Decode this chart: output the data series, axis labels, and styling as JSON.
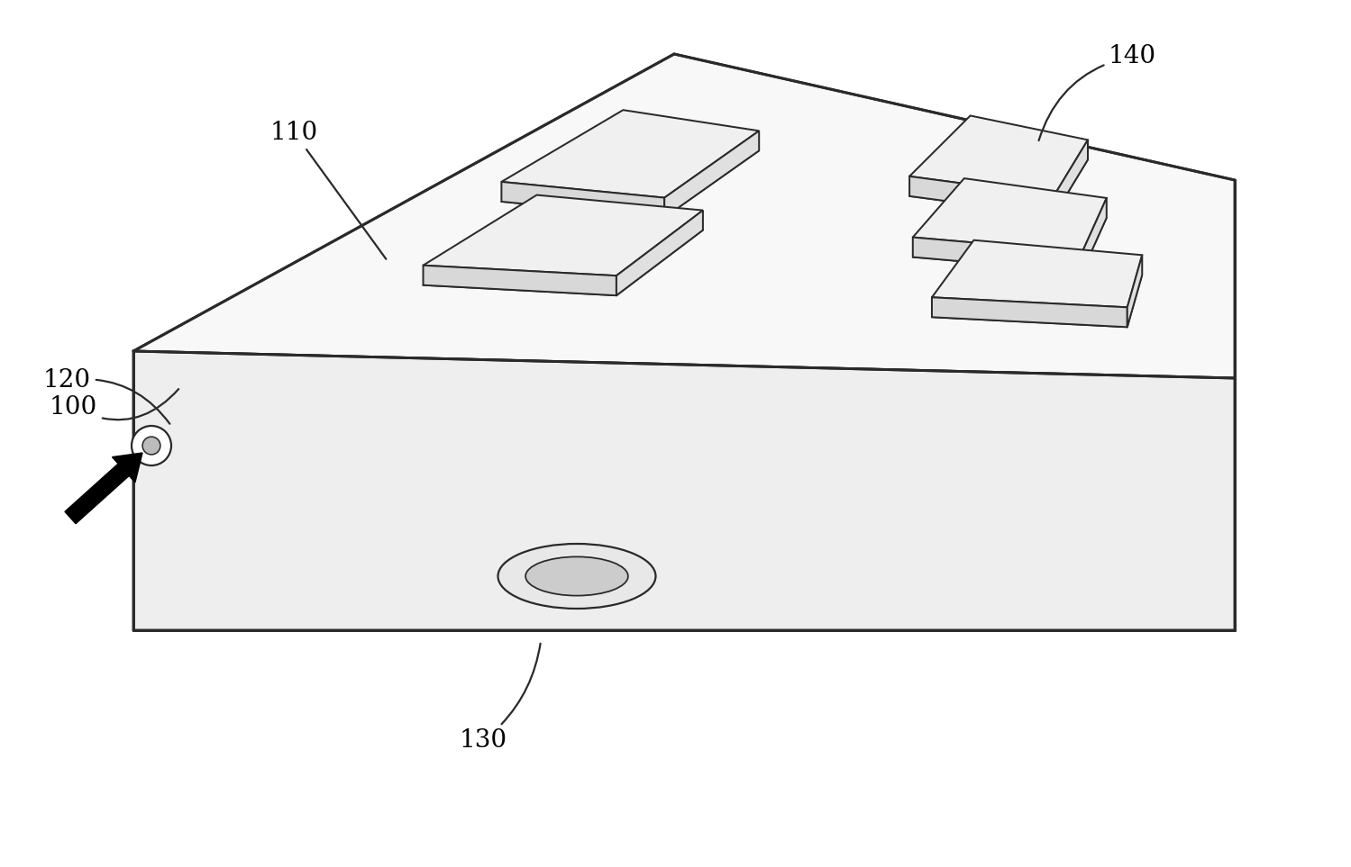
{
  "bg_color": "#ffffff",
  "line_color": "#2a2a2a",
  "line_width": 1.6,
  "label_fontsize": 20,
  "chip_face_color": "#f0f0f0",
  "chip_side_color": "#d8d8d8",
  "chip_right_color": "#e0e0e0",
  "box_top_color": "#f8f8f8",
  "box_front_color": "#eeeeee",
  "box_right_color": "#e4e4e4",
  "box_left_color": "#e8e8e8"
}
